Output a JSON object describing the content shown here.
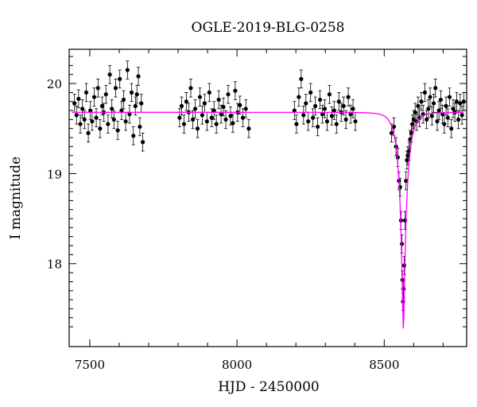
{
  "chart_data": {
    "type": "scatter",
    "title": "OGLE-2019-BLG-0258",
    "xlabel": "HJD - 2450000",
    "ylabel": "I magnitude",
    "xlim": [
      7430,
      8780
    ],
    "ylim": [
      20.38,
      17.08
    ],
    "y_inverted": true,
    "xticks": [
      7500,
      8000,
      8500
    ],
    "yticks": [
      18,
      19,
      20
    ],
    "colors": {
      "points": "#000000",
      "model": "#ff00ff",
      "axes": "#000000"
    },
    "series": [
      {
        "style": "points_with_errorbars",
        "err": 0.1,
        "points": [
          [
            7448,
            19.78
          ],
          [
            7455,
            19.65
          ],
          [
            7462,
            19.83
          ],
          [
            7468,
            19.55
          ],
          [
            7475,
            19.72
          ],
          [
            7482,
            19.6
          ],
          [
            7488,
            19.9
          ],
          [
            7495,
            19.45
          ],
          [
            7502,
            19.7
          ],
          [
            7508,
            19.58
          ],
          [
            7515,
            19.85
          ],
          [
            7522,
            19.62
          ],
          [
            7528,
            19.95
          ],
          [
            7535,
            19.5
          ],
          [
            7542,
            19.75
          ],
          [
            7548,
            19.68
          ],
          [
            7555,
            19.88
          ],
          [
            7562,
            19.55
          ],
          [
            7568,
            20.1
          ],
          [
            7575,
            19.72
          ],
          [
            7582,
            19.6
          ],
          [
            7588,
            19.95
          ],
          [
            7595,
            19.48
          ],
          [
            7602,
            20.05
          ],
          [
            7608,
            19.7
          ],
          [
            7615,
            19.82
          ],
          [
            7622,
            19.58
          ],
          [
            7628,
            20.15
          ],
          [
            7635,
            19.66
          ],
          [
            7642,
            19.9
          ],
          [
            7648,
            19.42
          ],
          [
            7655,
            19.75
          ],
          [
            7660,
            19.88
          ],
          [
            7665,
            20.08
          ],
          [
            7670,
            19.52
          ],
          [
            7675,
            19.78
          ],
          [
            7680,
            19.35
          ],
          [
            7805,
            19.62
          ],
          [
            7812,
            19.75
          ],
          [
            7820,
            19.55
          ],
          [
            7828,
            19.8
          ],
          [
            7836,
            19.68
          ],
          [
            7843,
            19.95
          ],
          [
            7850,
            19.6
          ],
          [
            7858,
            19.72
          ],
          [
            7866,
            19.5
          ],
          [
            7874,
            19.85
          ],
          [
            7882,
            19.65
          ],
          [
            7890,
            19.78
          ],
          [
            7898,
            19.58
          ],
          [
            7906,
            19.9
          ],
          [
            7914,
            19.62
          ],
          [
            7922,
            19.7
          ],
          [
            7930,
            19.55
          ],
          [
            7938,
            19.82
          ],
          [
            7946,
            19.66
          ],
          [
            7954,
            19.74
          ],
          [
            7962,
            19.6
          ],
          [
            7970,
            19.88
          ],
          [
            7978,
            19.64
          ],
          [
            7986,
            19.56
          ],
          [
            7994,
            19.92
          ],
          [
            8002,
            19.68
          ],
          [
            8010,
            19.76
          ],
          [
            8020,
            19.62
          ],
          [
            8030,
            19.72
          ],
          [
            8040,
            19.5
          ],
          [
            8195,
            19.7
          ],
          [
            8202,
            19.55
          ],
          [
            8210,
            19.85
          ],
          [
            8218,
            20.05
          ],
          [
            8226,
            19.65
          ],
          [
            8234,
            19.78
          ],
          [
            8242,
            19.58
          ],
          [
            8250,
            19.9
          ],
          [
            8258,
            19.62
          ],
          [
            8266,
            19.75
          ],
          [
            8274,
            19.52
          ],
          [
            8282,
            19.82
          ],
          [
            8290,
            19.66
          ],
          [
            8298,
            19.72
          ],
          [
            8306,
            19.58
          ],
          [
            8314,
            19.88
          ],
          [
            8322,
            19.64
          ],
          [
            8330,
            19.7
          ],
          [
            8338,
            19.55
          ],
          [
            8346,
            19.8
          ],
          [
            8354,
            19.68
          ],
          [
            8362,
            19.75
          ],
          [
            8370,
            19.6
          ],
          [
            8378,
            19.85
          ],
          [
            8386,
            19.66
          ],
          [
            8394,
            19.72
          ],
          [
            8402,
            19.58
          ],
          [
            8525,
            19.45
          ],
          [
            8533,
            19.52
          ],
          [
            8540,
            19.3
          ],
          [
            8546,
            19.18
          ],
          [
            8550,
            18.92
          ],
          [
            8554,
            18.85
          ],
          [
            8557,
            18.48
          ],
          [
            8560,
            18.22
          ],
          [
            8562,
            17.82
          ],
          [
            8564,
            17.58
          ],
          [
            8566,
            17.72
          ],
          [
            8568,
            17.98
          ],
          [
            8571,
            18.48
          ],
          [
            8574,
            18.92
          ],
          [
            8577,
            19.15
          ],
          [
            8580,
            19.2
          ],
          [
            8584,
            19.25
          ],
          [
            8588,
            19.38
          ],
          [
            8592,
            19.45
          ],
          [
            8596,
            19.55
          ],
          [
            8600,
            19.6
          ],
          [
            8605,
            19.68
          ],
          [
            8610,
            19.58
          ],
          [
            8615,
            19.75
          ],
          [
            8620,
            19.62
          ],
          [
            8626,
            19.8
          ],
          [
            8632,
            19.66
          ],
          [
            8638,
            19.9
          ],
          [
            8644,
            19.6
          ],
          [
            8650,
            19.72
          ],
          [
            8656,
            19.85
          ],
          [
            8662,
            19.64
          ],
          [
            8668,
            19.78
          ],
          [
            8674,
            19.95
          ],
          [
            8680,
            19.58
          ],
          [
            8686,
            19.7
          ],
          [
            8692,
            19.82
          ],
          [
            8698,
            19.66
          ],
          [
            8704,
            19.55
          ],
          [
            8710,
            19.75
          ],
          [
            8716,
            19.62
          ],
          [
            8722,
            19.85
          ],
          [
            8728,
            19.5
          ],
          [
            8734,
            19.72
          ],
          [
            8740,
            19.68
          ],
          [
            8746,
            19.8
          ],
          [
            8752,
            19.6
          ],
          [
            8758,
            19.78
          ],
          [
            8764,
            19.65
          ],
          [
            8770,
            19.8
          ]
        ]
      },
      {
        "style": "line",
        "model": {
          "baseline": 19.68,
          "t0": 8565,
          "tE": 28,
          "u0": 0.11
        }
      }
    ]
  }
}
